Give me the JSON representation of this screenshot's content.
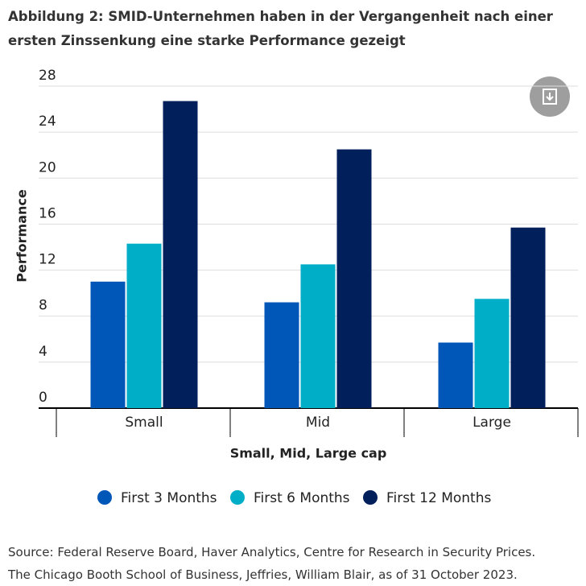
{
  "chart_data": {
    "type": "bar",
    "title": "Abbildung 2: SMID-Unternehmen haben in der Vergangenheit nach einer ersten Zinssenkung eine starke Performance gezeigt",
    "y_label": "Performance",
    "x_label": "Small, Mid, Large cap",
    "categories": [
      "Small",
      "Mid",
      "Large"
    ],
    "series": [
      {
        "name": "First 3 Months",
        "color": "#0057b8",
        "values": [
          11.0,
          9.2,
          5.7
        ]
      },
      {
        "name": "First 6 Months",
        "color": "#00aec7",
        "values": [
          14.3,
          12.5,
          9.5
        ]
      },
      {
        "name": "First 12 Months",
        "color": "#001f5b",
        "values": [
          26.7,
          22.5,
          15.7
        ]
      }
    ],
    "ylim": [
      0,
      28
    ],
    "yticks": [
      0,
      4,
      8,
      12,
      16,
      20,
      24,
      28
    ],
    "grid": true,
    "source": [
      "Source: Federal Reserve Board, Haver Analytics, Centre for Research in Security Prices.",
      "The Chicago Booth School of Business, Jeffries, William Blair, as of 31 October 2023."
    ]
  }
}
